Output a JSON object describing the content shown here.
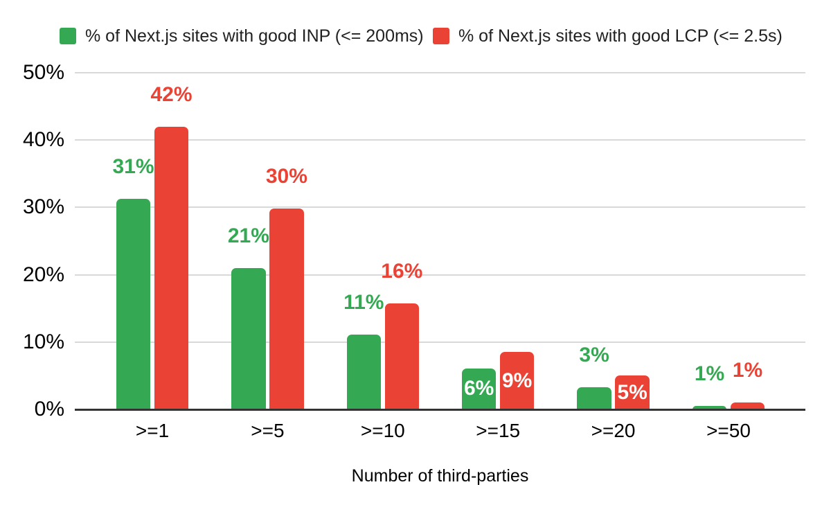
{
  "chart_data": {
    "type": "bar",
    "title": "",
    "categories": [
      ">=1",
      ">=5",
      ">=10",
      ">=15",
      ">=20",
      ">=50"
    ],
    "series": [
      {
        "name": "% of Next.js sites with good INP (<= 200ms)",
        "color": "#34a853",
        "values": [
          31.3,
          21,
          11.1,
          6.1,
          3.3,
          0.5
        ],
        "labels": [
          "31%",
          "21%",
          "11%",
          "6%",
          "3%",
          "1%"
        ],
        "label_placement": [
          "above",
          "above",
          "above",
          "inside",
          "above",
          "above"
        ]
      },
      {
        "name": "% of Next.js sites with good LCP (<= 2.5s)",
        "color": "#ea4335",
        "values": [
          42,
          29.8,
          15.7,
          8.5,
          5,
          1
        ],
        "labels": [
          "42%",
          "30%",
          "16%",
          "9%",
          "5%",
          "1%"
        ],
        "label_placement": [
          "above",
          "above",
          "above",
          "inside",
          "inside",
          "above"
        ]
      }
    ],
    "xlabel": "Number of third-parties",
    "ylabel": "",
    "ylim": [
      0,
      50
    ],
    "y_ticks": [
      "0%",
      "10%",
      "20%",
      "30%",
      "40%",
      "50%"
    ],
    "grid": true,
    "legend_position": "top"
  },
  "colors": {
    "inp_green": "#34a853",
    "lcp_red": "#ea4335",
    "gridline": "#d9d9d9",
    "axis_line": "#333333",
    "axis_text": "#000000",
    "legend_text": "#212121",
    "inside_label_text": "#ffffff",
    "background": "#ffffff"
  }
}
